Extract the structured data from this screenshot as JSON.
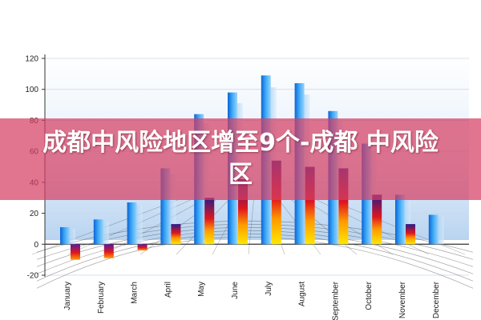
{
  "banner": {
    "title": "成都中风险地区增至9个-成都 中风险区"
  },
  "chart_data": {
    "type": "bar",
    "categories": [
      "January",
      "February",
      "March",
      "April",
      "May",
      "June",
      "July",
      "August",
      "September",
      "October",
      "November",
      "December"
    ],
    "series": [
      {
        "values": [
          11,
          16,
          27,
          49,
          84,
          98,
          109,
          104,
          86,
          65,
          32,
          19
        ]
      },
      {
        "values": [
          -10,
          -9,
          -4,
          13,
          30,
          42,
          54,
          50,
          49,
          32,
          13,
          0
        ]
      }
    ],
    "y_ticks": [
      -20,
      0,
      20,
      40,
      60,
      80,
      100,
      120
    ],
    "ylim": [
      -20,
      120
    ],
    "grid": true
  }
}
